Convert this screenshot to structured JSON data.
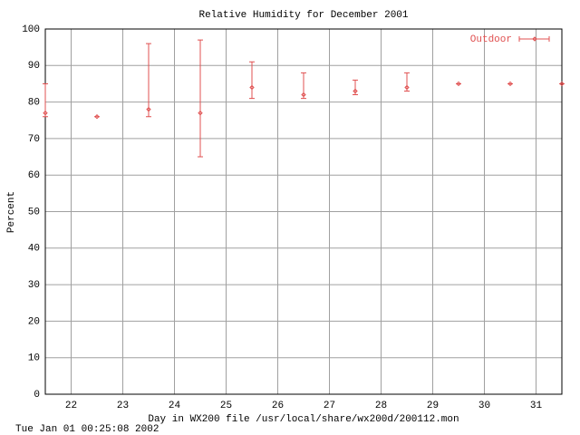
{
  "chart_data": {
    "type": "errorbar",
    "title": "Relative Humidity for December 2001",
    "x_label": "Day in WX200 file /usr/local/share/wx200d/200112.mon",
    "y_label": "Percent",
    "footer": "Tue Jan 01 00:25:08 2002",
    "x": [
      21.5,
      22.5,
      23.5,
      24.5,
      25.5,
      26.5,
      27.5,
      28.5,
      29.5,
      30.5,
      31.5
    ],
    "series": [
      {
        "name": "Outdoor",
        "color": "#e05050",
        "values": [
          77,
          76,
          78,
          77,
          84,
          82,
          83,
          84,
          85,
          85,
          85
        ],
        "low": [
          76,
          76,
          76,
          65,
          81,
          81,
          82,
          83,
          85,
          85,
          85
        ],
        "high": [
          85,
          76,
          96,
          97,
          91,
          88,
          86,
          88,
          85,
          85,
          85
        ]
      }
    ],
    "xlim": [
      21.5,
      31.5
    ],
    "xticks": [
      22,
      23,
      24,
      25,
      26,
      27,
      28,
      29,
      30,
      31
    ],
    "ylim": [
      0,
      100
    ],
    "yticks": [
      0,
      10,
      20,
      30,
      40,
      50,
      60,
      70,
      80,
      90,
      100
    ],
    "grid": true,
    "legend": "top-right"
  }
}
